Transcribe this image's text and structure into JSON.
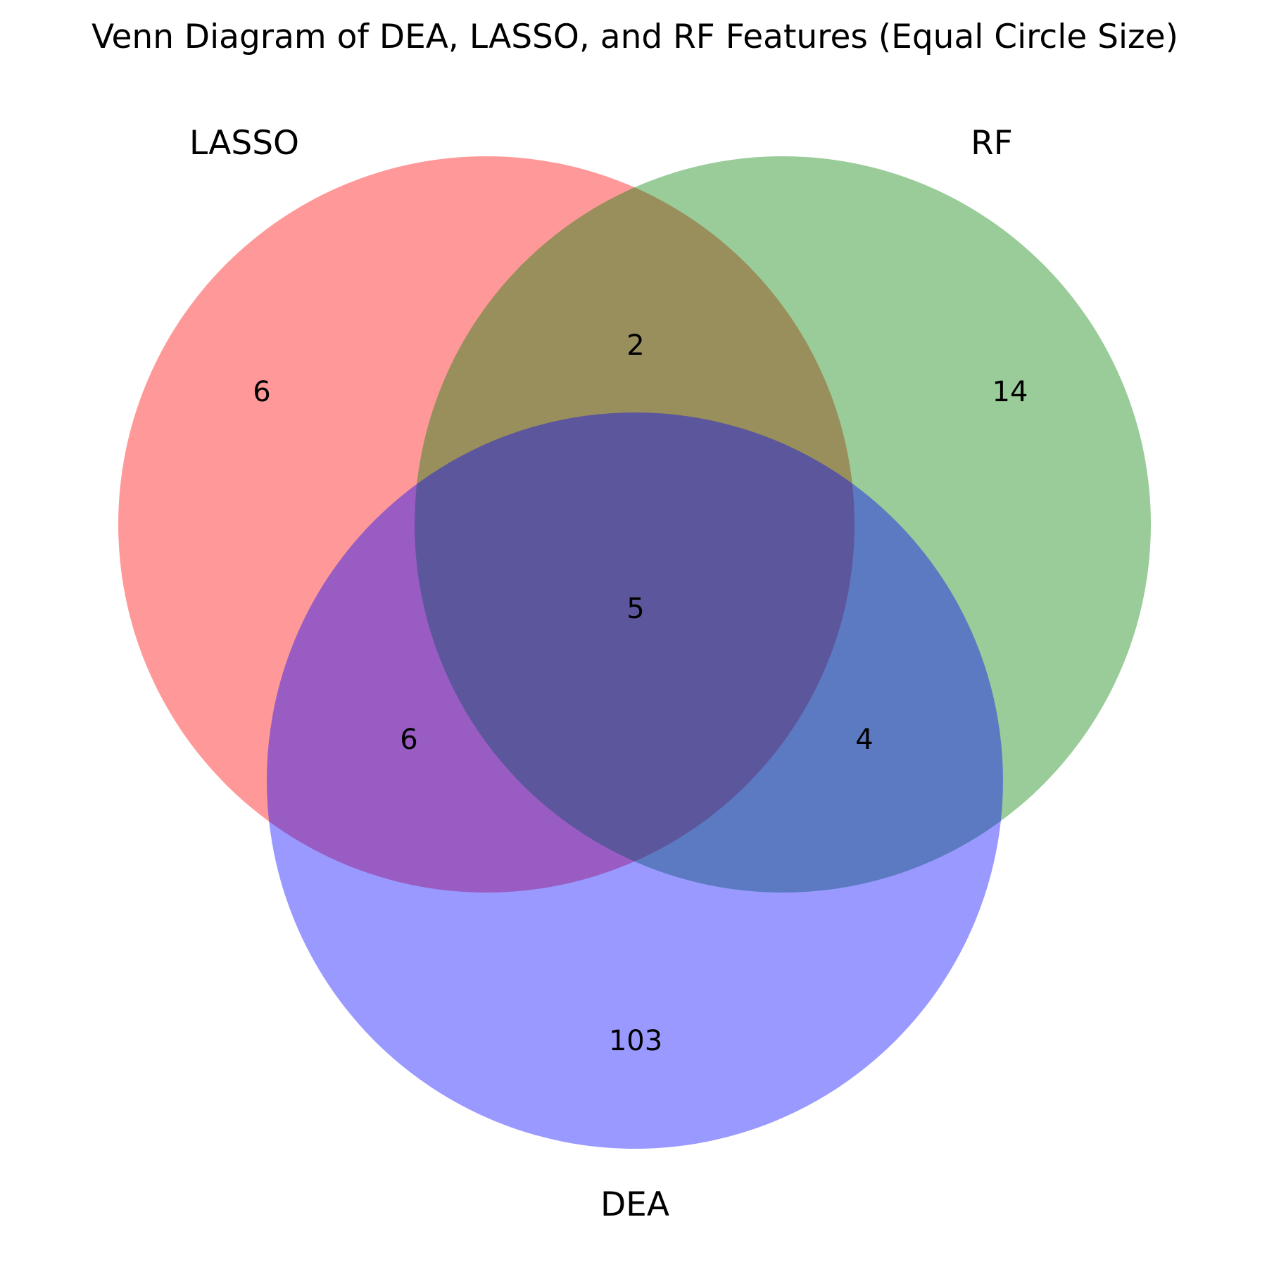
{
  "title": "Venn Diagram of DEA, LASSO, and RF Features (Equal Circle Size)",
  "sets": [
    {
      "id": "lasso",
      "name": "LASSO",
      "color": "#ff0000"
    },
    {
      "id": "rf",
      "name": "RF",
      "color": "#008000"
    },
    {
      "id": "dea",
      "name": "DEA",
      "color": "#0000ff"
    }
  ],
  "regions": {
    "lasso_only": "6",
    "rf_only": "14",
    "dea_only": "103",
    "lasso_rf": "2",
    "lasso_dea": "6",
    "rf_dea": "4",
    "all_three": "5"
  }
}
